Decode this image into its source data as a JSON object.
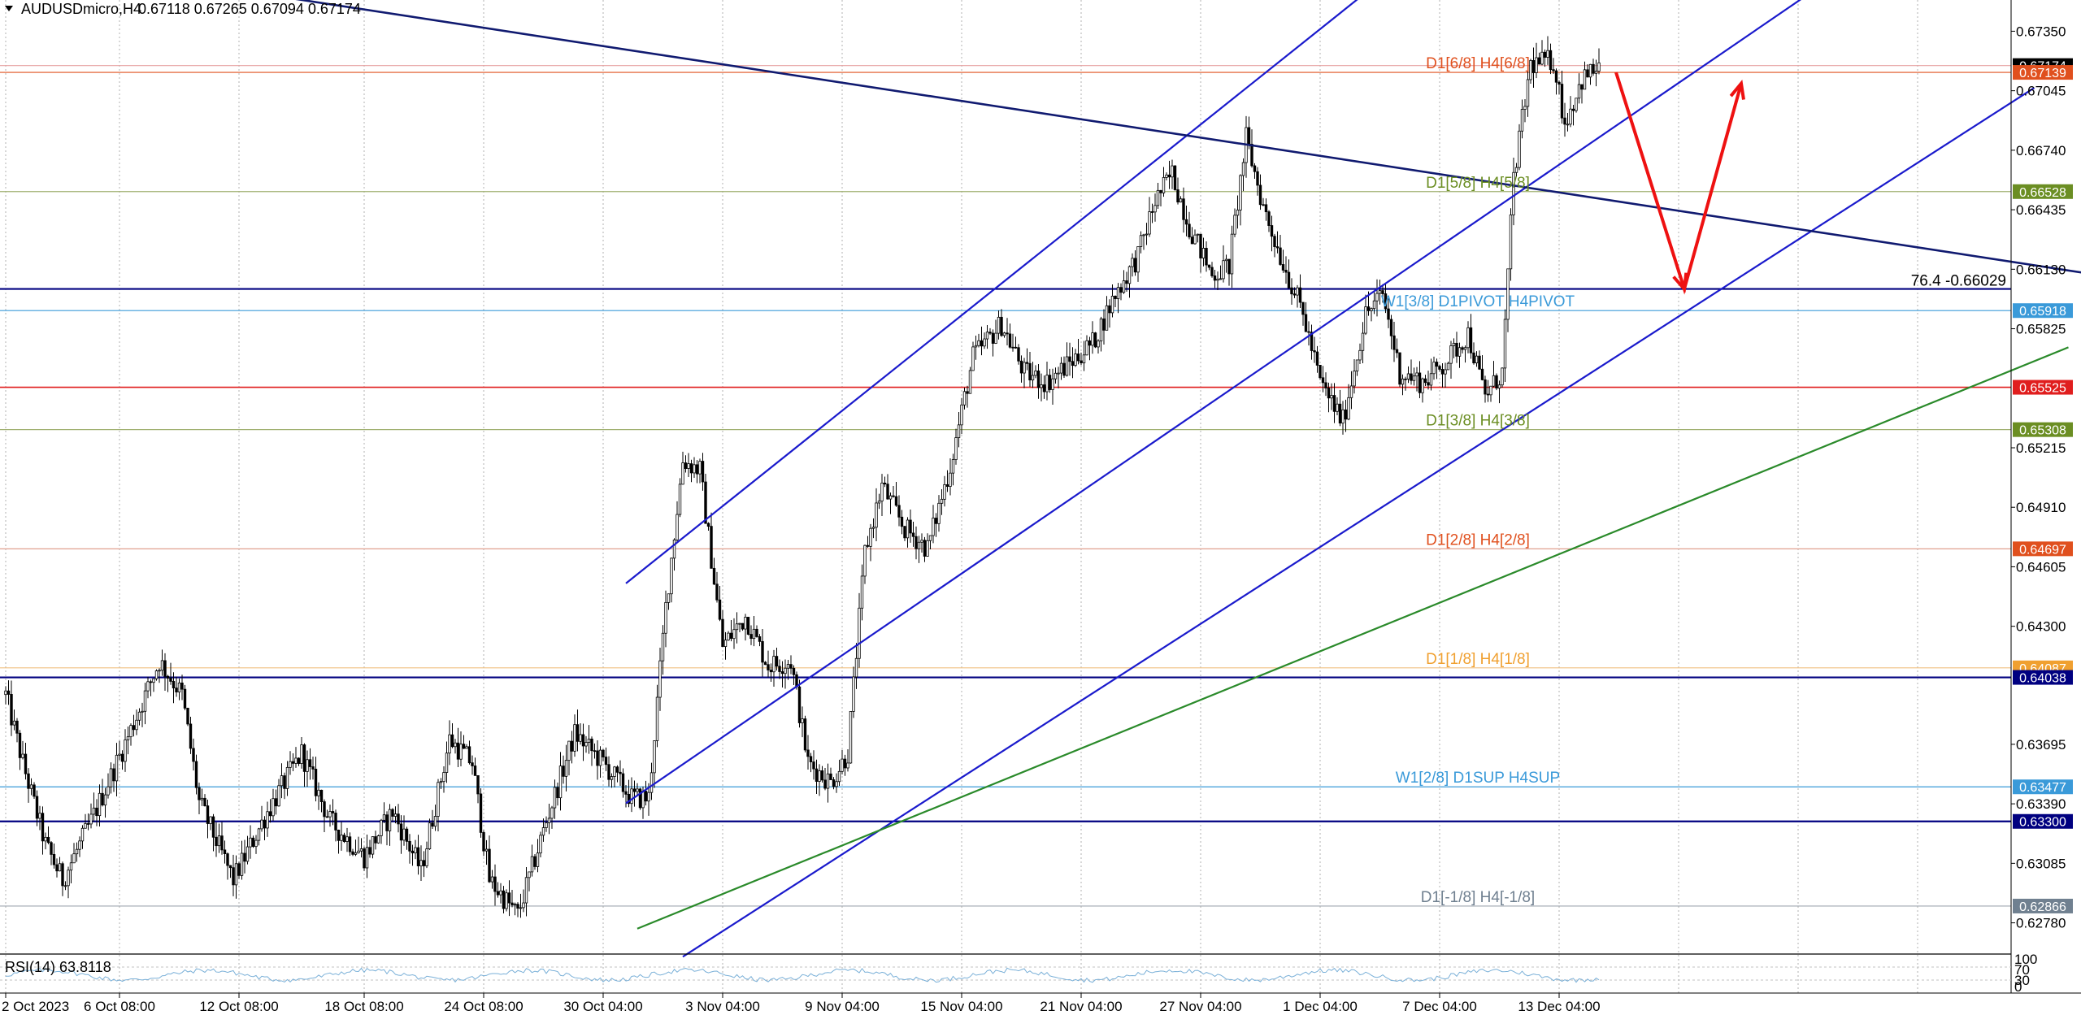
{
  "header": {
    "symbol": "AUDUSDmicro,H4",
    "ohlc": "0.67118 0.67265 0.67094 0.67174"
  },
  "indicator": {
    "label": "RSI(14) 63.8118",
    "scale": [
      "100",
      "70",
      "30",
      "0"
    ]
  },
  "price_axis_ticks": [
    "0.67350",
    "0.67045",
    "0.66740",
    "0.66435",
    "0.66130",
    "0.65825",
    "0.65215",
    "0.64910",
    "0.64605",
    "0.64300",
    "0.63695",
    "0.63390",
    "0.63085",
    "0.62780"
  ],
  "time_axis_ticks": [
    "2 Oct 2023",
    "6 Oct 08:00",
    "12 Oct 08:00",
    "18 Oct 08:00",
    "24 Oct 08:00",
    "30 Oct 04:00",
    "3 Nov 04:00",
    "9 Nov 04:00",
    "15 Nov 04:00",
    "21 Nov 04:00",
    "27 Nov 04:00",
    "1 Dec 04:00",
    "7 Dec 04:00",
    "13 Dec 04:00"
  ],
  "levels": [
    {
      "price": 0.67174,
      "tag": "0.67174",
      "tag_color": "#000000",
      "line_color": "#e6a0a0",
      "text": ""
    },
    {
      "price": 0.67139,
      "tag": "0.67139",
      "tag_color": "#e0501e",
      "line_color": "#e0501e",
      "text": "D1[6/8] H4[6/8]",
      "text_color": "#e0501e"
    },
    {
      "price": 0.66528,
      "tag": "0.66528",
      "tag_color": "#6b8e23",
      "line_color": "#a0b070",
      "text": "D1[5/8] H4[5/8]",
      "text_color": "#6b8e23"
    },
    {
      "price": 0.66029,
      "tag": "",
      "tag_color": "",
      "line_color": "#000080",
      "text": "76.4 -0.66029",
      "text_color": "#000000"
    },
    {
      "price": 0.65918,
      "tag": "0.65918",
      "tag_color": "#3a9ad9",
      "line_color": "#3a9ad9",
      "text": "W1[3/8] D1PIVOT H4PIVOT",
      "text_color": "#3a9ad9"
    },
    {
      "price": 0.65525,
      "tag": "0.65525",
      "tag_color": "#e01e1e",
      "line_color": "#e01e1e",
      "text": ""
    },
    {
      "price": 0.65308,
      "tag": "0.65308",
      "tag_color": "#6b8e23",
      "line_color": "#a0b070",
      "text": "D1[3/8] H4[3/8]",
      "text_color": "#6b8e23"
    },
    {
      "price": 0.64697,
      "tag": "0.64697",
      "tag_color": "#e0501e",
      "line_color": "#e0a090",
      "text": "D1[2/8] H4[2/8]",
      "text_color": "#e0501e"
    },
    {
      "price": 0.64087,
      "tag": "0.64087",
      "tag_color": "#f0a030",
      "line_color": "#f0c080",
      "text": "D1[1/8] H4[1/8]",
      "text_color": "#f0a030"
    },
    {
      "price": 0.64038,
      "tag": "0.64038",
      "tag_color": "#000080",
      "line_color": "#000080",
      "text": ""
    },
    {
      "price": 0.63477,
      "tag": "0.63477",
      "tag_color": "#3a9ad9",
      "line_color": "#3a9ad9",
      "text": "W1[2/8] D1SUP H4SUP",
      "text_color": "#3a9ad9"
    },
    {
      "price": 0.633,
      "tag": "0.63300",
      "tag_color": "#000080",
      "line_color": "#000080",
      "text": ""
    },
    {
      "price": 0.62866,
      "tag": "0.62866",
      "tag_color": "#708090",
      "line_color": "#a0a8b0",
      "text": "D1[-1/8] H4[-1/8]",
      "text_color": "#708090"
    }
  ],
  "chart_data": {
    "type": "candlestick",
    "title": "AUDUSDmicro,H4",
    "ylim": [
      0.6262,
      0.6751
    ],
    "close_path": [
      [
        0,
        0.6395
      ],
      [
        6,
        0.636
      ],
      [
        14,
        0.6318
      ],
      [
        20,
        0.63
      ],
      [
        30,
        0.633
      ],
      [
        42,
        0.637
      ],
      [
        54,
        0.6412
      ],
      [
        62,
        0.6395
      ],
      [
        68,
        0.634
      ],
      [
        80,
        0.63
      ],
      [
        92,
        0.6335
      ],
      [
        104,
        0.6365
      ],
      [
        114,
        0.633
      ],
      [
        126,
        0.6312
      ],
      [
        136,
        0.6335
      ],
      [
        146,
        0.6305
      ],
      [
        156,
        0.6372
      ],
      [
        164,
        0.636
      ],
      [
        170,
        0.63
      ],
      [
        180,
        0.6282
      ],
      [
        190,
        0.633
      ],
      [
        200,
        0.6375
      ],
      [
        210,
        0.636
      ],
      [
        220,
        0.6342
      ],
      [
        226,
        0.6342
      ],
      [
        232,
        0.644
      ],
      [
        238,
        0.6515
      ],
      [
        244,
        0.651
      ],
      [
        252,
        0.642
      ],
      [
        260,
        0.6435
      ],
      [
        268,
        0.641
      ],
      [
        276,
        0.6412
      ],
      [
        282,
        0.636
      ],
      [
        290,
        0.635
      ],
      [
        296,
        0.6365
      ],
      [
        302,
        0.6468
      ],
      [
        308,
        0.6502
      ],
      [
        316,
        0.648
      ],
      [
        324,
        0.647
      ],
      [
        332,
        0.6512
      ],
      [
        340,
        0.6568
      ],
      [
        350,
        0.6585
      ],
      [
        358,
        0.656
      ],
      [
        366,
        0.6555
      ],
      [
        374,
        0.6565
      ],
      [
        382,
        0.6575
      ],
      [
        390,
        0.66
      ],
      [
        398,
        0.662
      ],
      [
        404,
        0.6648
      ],
      [
        410,
        0.6662
      ],
      [
        416,
        0.6635
      ],
      [
        424,
        0.661
      ],
      [
        430,
        0.6615
      ],
      [
        436,
        0.668
      ],
      [
        442,
        0.6645
      ],
      [
        448,
        0.662
      ],
      [
        456,
        0.659
      ],
      [
        462,
        0.6555
      ],
      [
        470,
        0.6535
      ],
      [
        478,
        0.659
      ],
      [
        484,
        0.66
      ],
      [
        490,
        0.656
      ],
      [
        498,
        0.6555
      ],
      [
        506,
        0.6565
      ],
      [
        514,
        0.658
      ],
      [
        520,
        0.6548
      ],
      [
        526,
        0.656
      ],
      [
        530,
        0.666
      ],
      [
        536,
        0.6718
      ],
      [
        544,
        0.672
      ],
      [
        548,
        0.6688
      ],
      [
        554,
        0.671
      ],
      [
        560,
        0.6717
      ]
    ],
    "channels": [
      {
        "name": "",
        "color": "#1a1acc",
        "points": [
          [
            218,
            0.6452
          ],
          [
            476,
            0.67524
          ]
        ]
      },
      {
        "name": "",
        "color": "#1a1acc",
        "points": [
          [
            218,
            0.63393
          ],
          [
            632,
            0.67524
          ]
        ]
      },
      {
        "name": "",
        "color": "#1a1acc",
        "points": [
          [
            238,
            0.62606
          ],
          [
            713,
            0.6706
          ]
        ]
      },
      {
        "name": "",
        "color": "#2a8a2a",
        "points": [
          [
            222,
            0.6275
          ],
          [
            725,
            0.6573
          ]
        ]
      },
      {
        "name": "",
        "color": "#101a70",
        "points": [
          [
            98,
            0.67524
          ],
          [
            741,
            0.66088
          ]
        ]
      }
    ],
    "forecast_arrow": {
      "color": "#ee1111",
      "points": [
        [
          566,
          0.67139
        ],
        [
          590,
          0.66029
        ],
        [
          610,
          0.67082
        ]
      ]
    }
  }
}
